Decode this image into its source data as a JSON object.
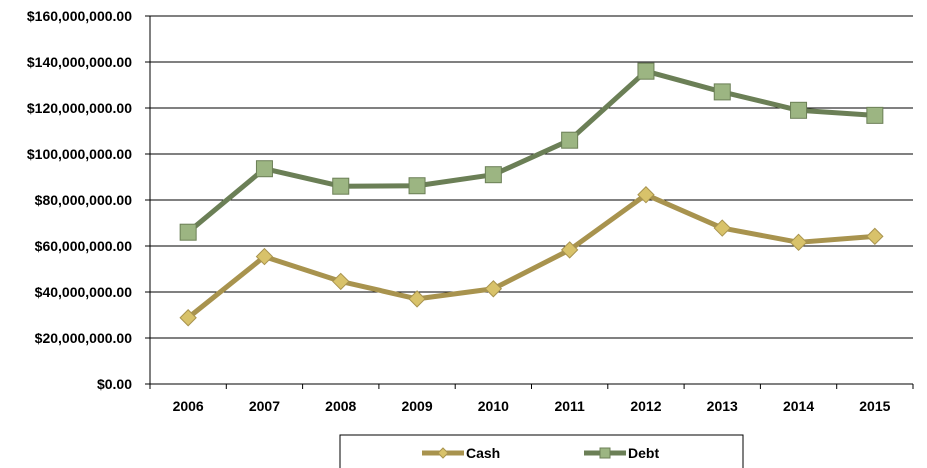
{
  "chart_data": {
    "type": "line",
    "categories": [
      "2006",
      "2007",
      "2008",
      "2009",
      "2010",
      "2011",
      "2012",
      "2013",
      "2014",
      "2015"
    ],
    "series": [
      {
        "name": "Cash",
        "color": "#a8934e",
        "marker": "diamond",
        "marker_color": "#d8c26a",
        "values": [
          28800000,
          55400000,
          44600000,
          37000000,
          41400000,
          58300000,
          82300000,
          67800000,
          61600000,
          64200000
        ]
      },
      {
        "name": "Debt",
        "color": "#6b7f56",
        "marker": "square",
        "marker_color": "#9cb582",
        "values": [
          66000000,
          93600000,
          86000000,
          86200000,
          91000000,
          106000000,
          136000000,
          127000000,
          119000000,
          116800000
        ]
      }
    ],
    "ylim": [
      0,
      160000000
    ],
    "yticks": [
      "$0.00",
      "$20,000,000.00",
      "$40,000,000.00",
      "$60,000,000.00",
      "$80,000,000.00",
      "$100,000,000.00",
      "$120,000,000.00",
      "$140,000,000.00",
      "$160,000,000.00"
    ],
    "grid": true,
    "legend": "bottom",
    "title": "",
    "xlabel": "",
    "ylabel": ""
  }
}
